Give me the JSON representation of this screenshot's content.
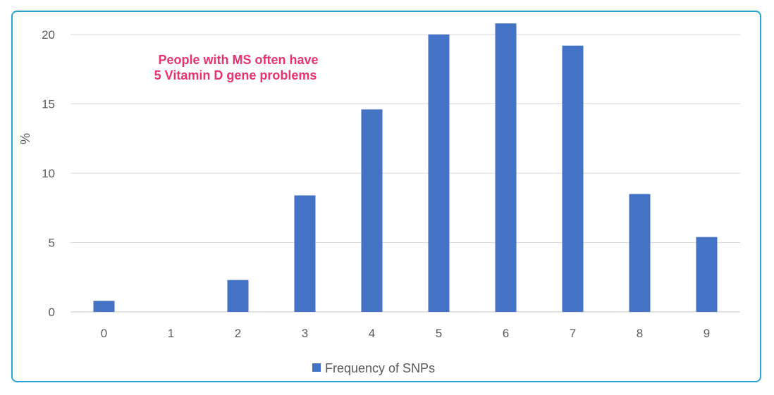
{
  "chart_data": {
    "type": "bar",
    "categories": [
      "0",
      "1",
      "2",
      "3",
      "4",
      "5",
      "6",
      "7",
      "8",
      "9"
    ],
    "series": [
      {
        "name": "Frequency of SNPs",
        "values": [
          0.8,
          0,
          2.3,
          8.4,
          14.6,
          20.0,
          20.8,
          19.2,
          8.5,
          5.4
        ]
      }
    ],
    "ylabel": "%",
    "xlabel": "",
    "ylim": [
      0,
      20
    ],
    "yticks": [
      "0",
      "5",
      "10",
      "15",
      "20"
    ],
    "grid": true,
    "legend": "bottom-center",
    "bar_color": "#4472c4",
    "annotation_lines": [
      "People with MS often have",
      "5 Vitamin D gene problems"
    ],
    "annotation_color": "#e8336f"
  }
}
